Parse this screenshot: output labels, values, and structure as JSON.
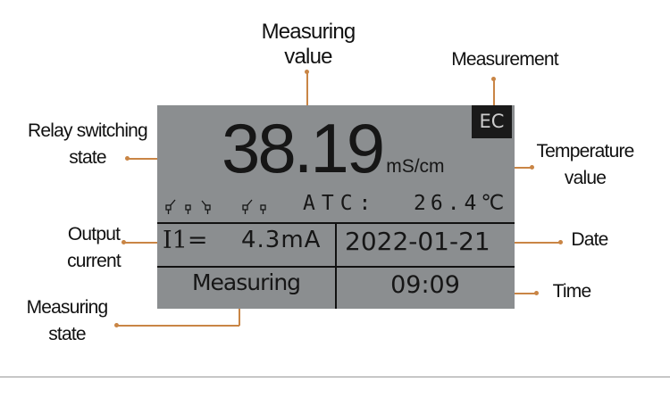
{
  "annotations": {
    "measuring_value": "Measuring value",
    "measurement": "Measurement",
    "relay_switching_state": "Relay switching state",
    "temperature_value": "Temperature value",
    "output_current": "Output current",
    "date": "Date",
    "time": "Time",
    "measuring_state": "Measuring state"
  },
  "display": {
    "measurement_type": "EC",
    "value": "38.19",
    "unit": "mS/cm",
    "atc_label": "ATC:",
    "temperature": "26.4℃",
    "output_label": "I1=",
    "output_value": "4.3mA",
    "date": "2022-01-21",
    "state": "Measuring",
    "time": "09:09",
    "relay_icons": [
      "relay-closed",
      "relay-open",
      "relay-closed-alt",
      "relay-closed",
      "relay-open"
    ]
  },
  "colors": {
    "lcd": "#8b8e90",
    "callout": "#c98545",
    "badge": "#1a1a1a"
  }
}
